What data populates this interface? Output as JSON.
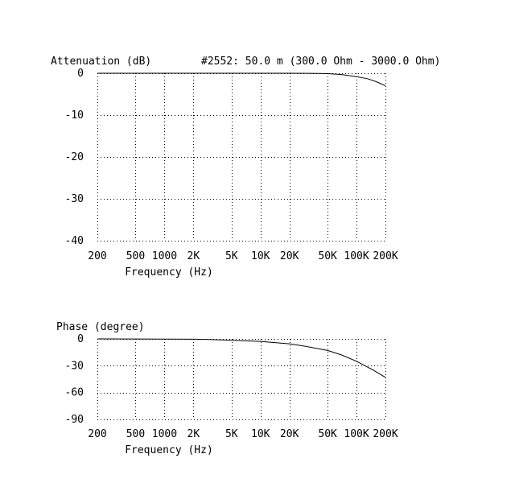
{
  "chart_data": [
    {
      "type": "line",
      "title": "#2552: 50.0 m (300.0 Ohm - 3000.0 Ohm)",
      "ylabel": "Attenuation (dB)",
      "xlabel": "Frequency (Hz)",
      "xscale": "log",
      "xlim": [
        200,
        200000
      ],
      "ylim": [
        -40,
        0
      ],
      "grid": true,
      "xticks": [
        200,
        500,
        1000,
        2000,
        5000,
        10000,
        20000,
        50000,
        100000,
        200000
      ],
      "xtick_labels": [
        "200",
        "500",
        "1000",
        "2K",
        "5K",
        "10K",
        "20K",
        "50K",
        "100K",
        "200K"
      ],
      "yticks": [
        0,
        -10,
        -20,
        -30,
        -40
      ],
      "ytick_labels": [
        "0",
        "-10",
        "-20",
        "-30",
        "-40"
      ],
      "series": [
        {
          "x": [
            200,
            500,
            1000,
            2000,
            5000,
            10000,
            20000,
            40000,
            50000,
            70000,
            100000,
            130000,
            160000,
            200000
          ],
          "y": [
            0,
            0,
            0,
            0,
            0,
            0,
            0,
            -0.05,
            -0.1,
            -0.3,
            -0.8,
            -1.3,
            -2.0,
            -3.0
          ]
        }
      ]
    },
    {
      "type": "line",
      "title": "",
      "ylabel": "Phase (degree)",
      "xlabel": "Frequency (Hz)",
      "xscale": "log",
      "xlim": [
        200,
        200000
      ],
      "ylim": [
        -90,
        0
      ],
      "grid": true,
      "xticks": [
        200,
        500,
        1000,
        2000,
        5000,
        10000,
        20000,
        50000,
        100000,
        200000
      ],
      "xtick_labels": [
        "200",
        "500",
        "1000",
        "2K",
        "5K",
        "10K",
        "20K",
        "50K",
        "100K",
        "200K"
      ],
      "yticks": [
        0,
        -30,
        -60,
        -90
      ],
      "ytick_labels": [
        "0",
        "-30",
        "-60",
        "-90"
      ],
      "series": [
        {
          "x": [
            200,
            1000,
            2000,
            3000,
            5000,
            10000,
            20000,
            30000,
            50000,
            70000,
            100000,
            150000,
            200000
          ],
          "y": [
            0,
            -0.2,
            -0.4,
            -0.7,
            -1.5,
            -2.8,
            -5.5,
            -8.5,
            -13,
            -18,
            -25,
            -35,
            -43
          ]
        }
      ]
    }
  ]
}
